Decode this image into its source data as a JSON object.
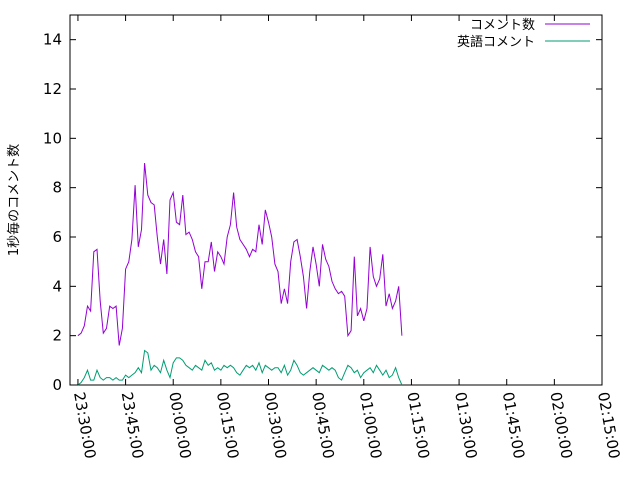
{
  "chart_data": {
    "type": "line",
    "title": "",
    "xlabel": "",
    "ylabel": "1秒毎のコメント数",
    "ylim": [
      0,
      15
    ],
    "yticks": [
      0,
      2,
      4,
      6,
      8,
      10,
      12,
      14
    ],
    "xlim": [
      "23:27:30",
      "02:15:00"
    ],
    "xticks": [
      "23:30:00",
      "23:45:00",
      "00:00:00",
      "00:15:00",
      "00:30:00",
      "00:45:00",
      "01:00:00",
      "01:15:00",
      "01:30:00",
      "01:45:00",
      "02:00:00",
      "02:15:00"
    ],
    "grid": false,
    "legend_position": "top-right",
    "series": [
      {
        "name": "コメント数",
        "color": "#9400d3",
        "points": [
          [
            "23:30:00",
            2.0
          ],
          [
            "23:31:00",
            2.1
          ],
          [
            "23:32:00",
            2.4
          ],
          [
            "23:33:00",
            3.2
          ],
          [
            "23:34:00",
            3.0
          ],
          [
            "23:35:00",
            5.4
          ],
          [
            "23:36:00",
            5.5
          ],
          [
            "23:37:00",
            3.4
          ],
          [
            "23:38:00",
            2.1
          ],
          [
            "23:39:00",
            2.3
          ],
          [
            "23:40:00",
            3.2
          ],
          [
            "23:41:00",
            3.1
          ],
          [
            "23:42:00",
            3.2
          ],
          [
            "23:43:00",
            1.6
          ],
          [
            "23:44:00",
            2.3
          ],
          [
            "23:45:00",
            4.7
          ],
          [
            "23:46:00",
            5.0
          ],
          [
            "23:47:00",
            5.9
          ],
          [
            "23:48:00",
            8.1
          ],
          [
            "23:49:00",
            5.6
          ],
          [
            "23:50:00",
            6.3
          ],
          [
            "23:51:00",
            9.0
          ],
          [
            "23:52:00",
            7.7
          ],
          [
            "23:53:00",
            7.4
          ],
          [
            "23:54:00",
            7.3
          ],
          [
            "23:55:00",
            6.0
          ],
          [
            "23:56:00",
            4.9
          ],
          [
            "23:57:00",
            5.9
          ],
          [
            "23:58:00",
            4.5
          ],
          [
            "23:59:00",
            7.5
          ],
          [
            "00:00:00",
            7.8
          ],
          [
            "00:01:00",
            6.6
          ],
          [
            "00:02:00",
            6.5
          ],
          [
            "00:03:00",
            7.7
          ],
          [
            "00:04:00",
            6.1
          ],
          [
            "00:05:00",
            6.2
          ],
          [
            "00:06:00",
            5.9
          ],
          [
            "00:07:00",
            5.4
          ],
          [
            "00:08:00",
            5.2
          ],
          [
            "00:09:00",
            3.9
          ],
          [
            "00:10:00",
            5.0
          ],
          [
            "00:11:00",
            5.0
          ],
          [
            "00:12:00",
            5.8
          ],
          [
            "00:13:00",
            4.6
          ],
          [
            "00:14:00",
            5.4
          ],
          [
            "00:15:00",
            5.2
          ],
          [
            "00:16:00",
            4.9
          ],
          [
            "00:17:00",
            6.0
          ],
          [
            "00:18:00",
            6.5
          ],
          [
            "00:19:00",
            7.8
          ],
          [
            "00:20:00",
            6.4
          ],
          [
            "00:21:00",
            5.9
          ],
          [
            "00:22:00",
            5.7
          ],
          [
            "00:23:00",
            5.5
          ],
          [
            "00:24:00",
            5.2
          ],
          [
            "00:25:00",
            5.5
          ],
          [
            "00:26:00",
            5.4
          ],
          [
            "00:27:00",
            6.5
          ],
          [
            "00:28:00",
            5.7
          ],
          [
            "00:29:00",
            7.1
          ],
          [
            "00:30:00",
            6.6
          ],
          [
            "00:31:00",
            6.0
          ],
          [
            "00:32:00",
            4.9
          ],
          [
            "00:33:00",
            4.6
          ],
          [
            "00:34:00",
            3.3
          ],
          [
            "00:35:00",
            3.9
          ],
          [
            "00:36:00",
            3.3
          ],
          [
            "00:37:00",
            5.0
          ],
          [
            "00:38:00",
            5.8
          ],
          [
            "00:39:00",
            5.9
          ],
          [
            "00:40:00",
            5.2
          ],
          [
            "00:41:00",
            4.4
          ],
          [
            "00:42:00",
            3.1
          ],
          [
            "00:43:00",
            4.6
          ],
          [
            "00:44:00",
            5.6
          ],
          [
            "00:45:00",
            4.9
          ],
          [
            "00:46:00",
            4.0
          ],
          [
            "00:47:00",
            5.7
          ],
          [
            "00:48:00",
            5.1
          ],
          [
            "00:49:00",
            4.8
          ],
          [
            "00:50:00",
            4.2
          ],
          [
            "00:51:00",
            3.9
          ],
          [
            "00:52:00",
            3.7
          ],
          [
            "00:53:00",
            3.8
          ],
          [
            "00:54:00",
            3.6
          ],
          [
            "00:55:00",
            2.0
          ],
          [
            "00:56:00",
            2.2
          ],
          [
            "00:57:00",
            5.2
          ],
          [
            "00:58:00",
            2.8
          ],
          [
            "00:59:00",
            3.1
          ],
          [
            "01:00:00",
            2.6
          ],
          [
            "01:01:00",
            3.1
          ],
          [
            "01:02:00",
            5.6
          ],
          [
            "01:03:00",
            4.4
          ],
          [
            "01:04:00",
            4.0
          ],
          [
            "01:05:00",
            4.3
          ],
          [
            "01:06:00",
            5.3
          ],
          [
            "01:07:00",
            3.2
          ],
          [
            "01:08:00",
            3.7
          ],
          [
            "01:09:00",
            3.1
          ],
          [
            "01:10:00",
            3.4
          ],
          [
            "01:11:00",
            4.0
          ],
          [
            "01:12:00",
            2.0
          ]
        ]
      },
      {
        "name": "英語コメント",
        "color": "#009e73",
        "points": [
          [
            "23:30:00",
            0.0
          ],
          [
            "23:31:00",
            0.1
          ],
          [
            "23:32:00",
            0.3
          ],
          [
            "23:33:00",
            0.6
          ],
          [
            "23:34:00",
            0.2
          ],
          [
            "23:35:00",
            0.2
          ],
          [
            "23:36:00",
            0.6
          ],
          [
            "23:37:00",
            0.3
          ],
          [
            "23:38:00",
            0.2
          ],
          [
            "23:39:00",
            0.3
          ],
          [
            "23:40:00",
            0.3
          ],
          [
            "23:41:00",
            0.2
          ],
          [
            "23:42:00",
            0.3
          ],
          [
            "23:43:00",
            0.2
          ],
          [
            "23:44:00",
            0.2
          ],
          [
            "23:45:00",
            0.4
          ],
          [
            "23:46:00",
            0.3
          ],
          [
            "23:47:00",
            0.4
          ],
          [
            "23:48:00",
            0.5
          ],
          [
            "23:49:00",
            0.7
          ],
          [
            "23:50:00",
            0.5
          ],
          [
            "23:51:00",
            1.4
          ],
          [
            "23:52:00",
            1.3
          ],
          [
            "23:53:00",
            0.6
          ],
          [
            "23:54:00",
            0.8
          ],
          [
            "23:55:00",
            0.7
          ],
          [
            "23:56:00",
            0.5
          ],
          [
            "23:57:00",
            1.0
          ],
          [
            "23:58:00",
            0.6
          ],
          [
            "23:59:00",
            0.3
          ],
          [
            "00:00:00",
            0.9
          ],
          [
            "00:01:00",
            1.1
          ],
          [
            "00:02:00",
            1.1
          ],
          [
            "00:03:00",
            1.0
          ],
          [
            "00:04:00",
            0.8
          ],
          [
            "00:05:00",
            0.7
          ],
          [
            "00:06:00",
            0.6
          ],
          [
            "00:07:00",
            0.8
          ],
          [
            "00:08:00",
            0.7
          ],
          [
            "00:09:00",
            0.6
          ],
          [
            "00:10:00",
            1.0
          ],
          [
            "00:11:00",
            0.8
          ],
          [
            "00:12:00",
            0.9
          ],
          [
            "00:13:00",
            0.6
          ],
          [
            "00:14:00",
            0.7
          ],
          [
            "00:15:00",
            0.6
          ],
          [
            "00:16:00",
            0.8
          ],
          [
            "00:17:00",
            0.7
          ],
          [
            "00:18:00",
            0.8
          ],
          [
            "00:19:00",
            0.7
          ],
          [
            "00:20:00",
            0.5
          ],
          [
            "00:21:00",
            0.4
          ],
          [
            "00:22:00",
            0.6
          ],
          [
            "00:23:00",
            0.8
          ],
          [
            "00:24:00",
            0.7
          ],
          [
            "00:25:00",
            0.8
          ],
          [
            "00:26:00",
            0.6
          ],
          [
            "00:27:00",
            0.9
          ],
          [
            "00:28:00",
            0.5
          ],
          [
            "00:29:00",
            0.8
          ],
          [
            "00:30:00",
            0.7
          ],
          [
            "00:31:00",
            0.6
          ],
          [
            "00:32:00",
            0.7
          ],
          [
            "00:33:00",
            0.7
          ],
          [
            "00:34:00",
            0.5
          ],
          [
            "00:35:00",
            0.8
          ],
          [
            "00:36:00",
            0.4
          ],
          [
            "00:37:00",
            0.6
          ],
          [
            "00:38:00",
            1.0
          ],
          [
            "00:39:00",
            0.8
          ],
          [
            "00:40:00",
            0.5
          ],
          [
            "00:41:00",
            0.4
          ],
          [
            "00:42:00",
            0.5
          ],
          [
            "00:43:00",
            0.6
          ],
          [
            "00:44:00",
            0.7
          ],
          [
            "00:45:00",
            0.6
          ],
          [
            "00:46:00",
            0.5
          ],
          [
            "00:47:00",
            0.8
          ],
          [
            "00:48:00",
            0.7
          ],
          [
            "00:49:00",
            0.6
          ],
          [
            "00:50:00",
            0.7
          ],
          [
            "00:51:00",
            0.6
          ],
          [
            "00:52:00",
            0.3
          ],
          [
            "00:53:00",
            0.2
          ],
          [
            "00:54:00",
            0.5
          ],
          [
            "00:55:00",
            0.8
          ],
          [
            "00:56:00",
            0.7
          ],
          [
            "00:57:00",
            0.5
          ],
          [
            "00:58:00",
            0.6
          ],
          [
            "00:59:00",
            0.3
          ],
          [
            "01:00:00",
            0.5
          ],
          [
            "01:01:00",
            0.6
          ],
          [
            "01:02:00",
            0.7
          ],
          [
            "01:03:00",
            0.5
          ],
          [
            "01:04:00",
            0.8
          ],
          [
            "01:05:00",
            0.6
          ],
          [
            "01:06:00",
            0.4
          ],
          [
            "01:07:00",
            0.6
          ],
          [
            "01:08:00",
            0.3
          ],
          [
            "01:09:00",
            0.4
          ],
          [
            "01:10:00",
            0.7
          ],
          [
            "01:11:00",
            0.3
          ],
          [
            "01:12:00",
            0.0
          ]
        ]
      }
    ]
  }
}
